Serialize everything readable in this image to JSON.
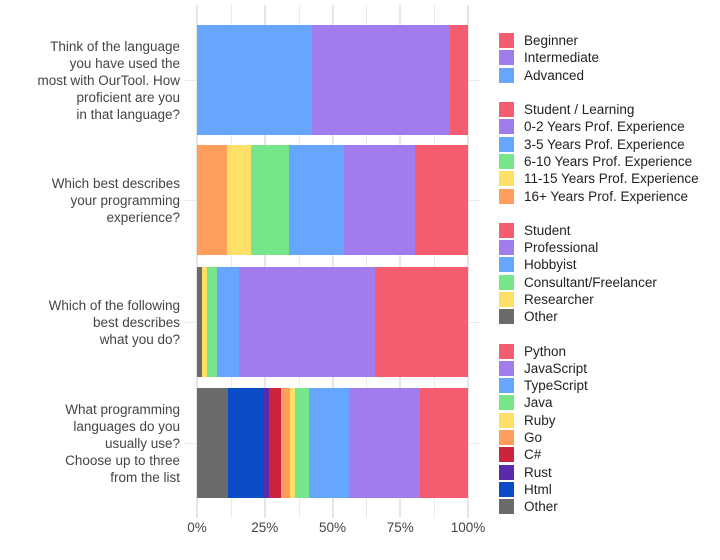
{
  "chart_data": {
    "type": "bar",
    "orientation": "horizontal",
    "stacked": true,
    "title": "",
    "xlabel": "",
    "ylabel": "",
    "xlim": [
      0,
      100
    ],
    "x_ticks": [
      "0%",
      "25%",
      "50%",
      "75%",
      "100%"
    ],
    "grid": true,
    "legend_position": "right",
    "bars": [
      {
        "label": "Think of the language you have used the most with OurTool. How proficient are you in that language?",
        "label_lines": [
          "Think of the language",
          "you have used the",
          "most with OurTool. How",
          "proficient are you",
          "in that language?"
        ],
        "segments": [
          {
            "name": "Advanced",
            "value": 42.4,
            "color": "#66a6ff"
          },
          {
            "name": "Intermediate",
            "value": 50.9,
            "color": "#a17cec"
          },
          {
            "name": "Beginner",
            "value": 6.7,
            "color": "#f55c70"
          }
        ]
      },
      {
        "label": "Which best describes your programming experience?",
        "label_lines": [
          "Which best describes",
          "your programming",
          "experience?"
        ],
        "segments": [
          {
            "name": "16+ Years Prof. Experience",
            "value": 11.1,
            "color": "#ff9d5c"
          },
          {
            "name": "11-15 Years Prof. Experience",
            "value": 8.9,
            "color": "#ffe066"
          },
          {
            "name": "6-10 Years Prof. Experience",
            "value": 14.0,
            "color": "#77e68b"
          },
          {
            "name": "3-5 Years Prof. Experience",
            "value": 20.3,
            "color": "#66a6ff"
          },
          {
            "name": "0-2 Years Prof. Experience",
            "value": 26.2,
            "color": "#a17cec"
          },
          {
            "name": "Student / Learning",
            "value": 19.5,
            "color": "#f55c70"
          }
        ]
      },
      {
        "label": "Which of the following best describes what you do?",
        "label_lines": [
          "Which of the following",
          "best describes",
          "what you do?"
        ],
        "segments": [
          {
            "name": "Other",
            "value": 1.8,
            "color": "#6b6b6b"
          },
          {
            "name": "Researcher",
            "value": 1.8,
            "color": "#ffe066"
          },
          {
            "name": "Consultant/Freelancer",
            "value": 3.7,
            "color": "#77e68b"
          },
          {
            "name": "Hobbyist",
            "value": 8.1,
            "color": "#66a6ff"
          },
          {
            "name": "Professional",
            "value": 50.2,
            "color": "#a17cec"
          },
          {
            "name": "Student",
            "value": 34.4,
            "color": "#f55c70"
          }
        ]
      },
      {
        "label": "What programming languages do you usually use? Choose up to three from the list",
        "label_lines": [
          "What programming",
          "languages do you",
          "usually use?",
          "Choose up to three",
          "from the list"
        ],
        "segments": [
          {
            "name": "Other",
            "value": 11.4,
            "color": "#6b6b6b"
          },
          {
            "name": "Html",
            "value": 13.3,
            "color": "#0b4dc9"
          },
          {
            "name": "Rust",
            "value": 1.8,
            "color": "#5a2aad"
          },
          {
            "name": "C#",
            "value": 4.4,
            "color": "#cc243c"
          },
          {
            "name": "Go",
            "value": 3.3,
            "color": "#ff9d5c"
          },
          {
            "name": "Ruby",
            "value": 1.8,
            "color": "#ffe066"
          },
          {
            "name": "Java",
            "value": 5.2,
            "color": "#77e68b"
          },
          {
            "name": "TypeScript",
            "value": 14.8,
            "color": "#66a6ff"
          },
          {
            "name": "JavaScript",
            "value": 26.2,
            "color": "#a17cec"
          },
          {
            "name": "Python",
            "value": 17.8,
            "color": "#f55c70"
          }
        ]
      }
    ],
    "legend_groups": [
      [
        {
          "name": "Beginner",
          "color": "#f55c70"
        },
        {
          "name": "Intermediate",
          "color": "#a17cec"
        },
        {
          "name": "Advanced",
          "color": "#66a6ff"
        }
      ],
      [
        {
          "name": "Student / Learning",
          "color": "#f55c70"
        },
        {
          "name": "0-2 Years Prof. Experience",
          "color": "#a17cec"
        },
        {
          "name": "3-5 Years Prof. Experience",
          "color": "#66a6ff"
        },
        {
          "name": "6-10 Years Prof. Experience",
          "color": "#77e68b"
        },
        {
          "name": "11-15 Years Prof. Experience",
          "color": "#ffe066"
        },
        {
          "name": "16+ Years Prof. Experience",
          "color": "#ff9d5c"
        }
      ],
      [
        {
          "name": "Student",
          "color": "#f55c70"
        },
        {
          "name": "Professional",
          "color": "#a17cec"
        },
        {
          "name": "Hobbyist",
          "color": "#66a6ff"
        },
        {
          "name": "Consultant/Freelancer",
          "color": "#77e68b"
        },
        {
          "name": "Researcher",
          "color": "#ffe066"
        },
        {
          "name": "Other",
          "color": "#6b6b6b"
        }
      ],
      [
        {
          "name": "Python",
          "color": "#f55c70"
        },
        {
          "name": "JavaScript",
          "color": "#a17cec"
        },
        {
          "name": "TypeScript",
          "color": "#66a6ff"
        },
        {
          "name": "Java",
          "color": "#77e68b"
        },
        {
          "name": "Ruby",
          "color": "#ffe066"
        },
        {
          "name": "Go",
          "color": "#ff9d5c"
        },
        {
          "name": "C#",
          "color": "#cc243c"
        },
        {
          "name": "Rust",
          "color": "#5a2aad"
        },
        {
          "name": "Html",
          "color": "#0b4dc9"
        },
        {
          "name": "Other",
          "color": "#6b6b6b"
        }
      ]
    ]
  }
}
